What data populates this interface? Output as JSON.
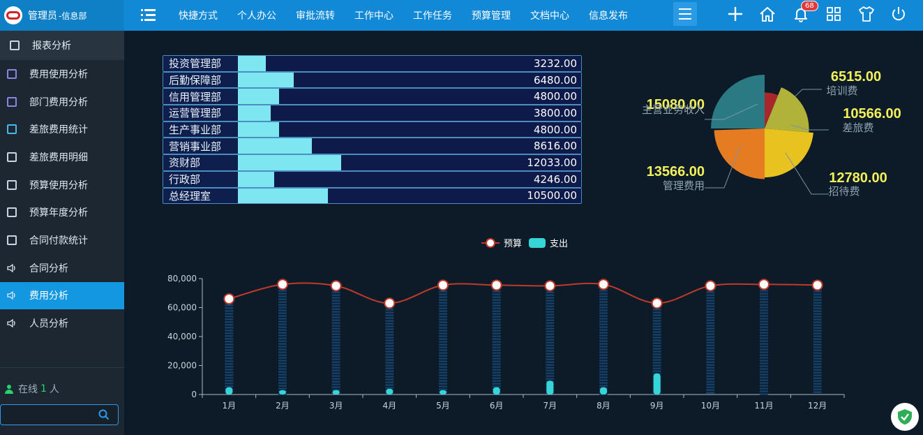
{
  "header": {
    "user_label": "管理员",
    "dept_label": "-信息部",
    "nav": [
      "快捷方式",
      "个人办公",
      "审批流转",
      "工作中心",
      "工作任务",
      "预算管理",
      "文档中心",
      "信息发布"
    ],
    "notification_count": "68"
  },
  "sidebar": {
    "section_title": "报表分析",
    "items": [
      {
        "label": "费用使用分析",
        "icon": "report-icon"
      },
      {
        "label": "部门费用分析",
        "icon": "report-icon"
      },
      {
        "label": "差旅费用统计",
        "icon": "report-icon"
      },
      {
        "label": "差旅费用明细",
        "icon": "report-icon"
      },
      {
        "label": "预算使用分析",
        "icon": "report-icon"
      },
      {
        "label": "预算年度分析",
        "icon": "report-icon"
      },
      {
        "label": "合同付款统计",
        "icon": "report-icon"
      },
      {
        "label": "合同分析",
        "icon": "speaker-icon"
      },
      {
        "label": "费用分析",
        "icon": "speaker-icon",
        "active": true
      },
      {
        "label": "人员分析",
        "icon": "speaker-icon"
      }
    ],
    "online_prefix": "在线",
    "online_count": "1",
    "online_suffix": "人",
    "search_placeholder": ""
  },
  "chart_data": [
    {
      "type": "bar",
      "categories": [
        "投资管理部",
        "后勤保障部",
        "信用管理部",
        "运营管理部",
        "生产事业部",
        "营销事业部",
        "资财部",
        "行政部",
        "总经理室"
      ],
      "values": [
        3232.0,
        6480.0,
        4800.0,
        3800.0,
        4800.0,
        8616.0,
        12033.0,
        4246.0,
        10500.0
      ],
      "value_labels": [
        "3232.00",
        "6480.00",
        "4800.00",
        "3800.00",
        "4800.00",
        "8616.00",
        "12033.00",
        "4246.00",
        "10500.00"
      ],
      "xlim": [
        0,
        40000
      ]
    },
    {
      "type": "pie",
      "slices": [
        {
          "label": "主营业务收入",
          "value": 15080.0,
          "value_label": "15080.00",
          "color": "#2a7a84"
        },
        {
          "label": "培训费",
          "value": 6515.0,
          "value_label": "6515.00",
          "color": "#a8272a"
        },
        {
          "label": "差旅费",
          "value": 10566.0,
          "value_label": "10566.00",
          "color": "#b0b23a"
        },
        {
          "label": "招待费",
          "value": 12780.0,
          "value_label": "12780.00",
          "color": "#e8c21e"
        },
        {
          "label": "管理费用",
          "value": 13566.0,
          "value_label": "13566.00",
          "color": "#e67c22"
        }
      ],
      "rose_type": true
    },
    {
      "type": "bar",
      "categories": [
        "1月",
        "2月",
        "3月",
        "4月",
        "5月",
        "6月",
        "7月",
        "8月",
        "9月",
        "10月",
        "11月",
        "12月"
      ],
      "series": [
        {
          "name": "预算",
          "type": "line",
          "values": [
            66000,
            76000,
            75000,
            63000,
            75500,
            75500,
            75000,
            76000,
            63000,
            75000,
            76000,
            75500
          ],
          "color": "#c0392b"
        },
        {
          "name": "支出",
          "type": "bar",
          "values": [
            5000,
            3000,
            3000,
            4000,
            3000,
            5000,
            9500,
            5000,
            14500,
            0,
            0,
            0
          ],
          "color": "#36d6d8"
        }
      ],
      "ylim": [
        0,
        80000
      ],
      "yticks": [
        "0",
        "20,000",
        "40,000",
        "60,000",
        "80,000"
      ],
      "legend": "top"
    }
  ]
}
